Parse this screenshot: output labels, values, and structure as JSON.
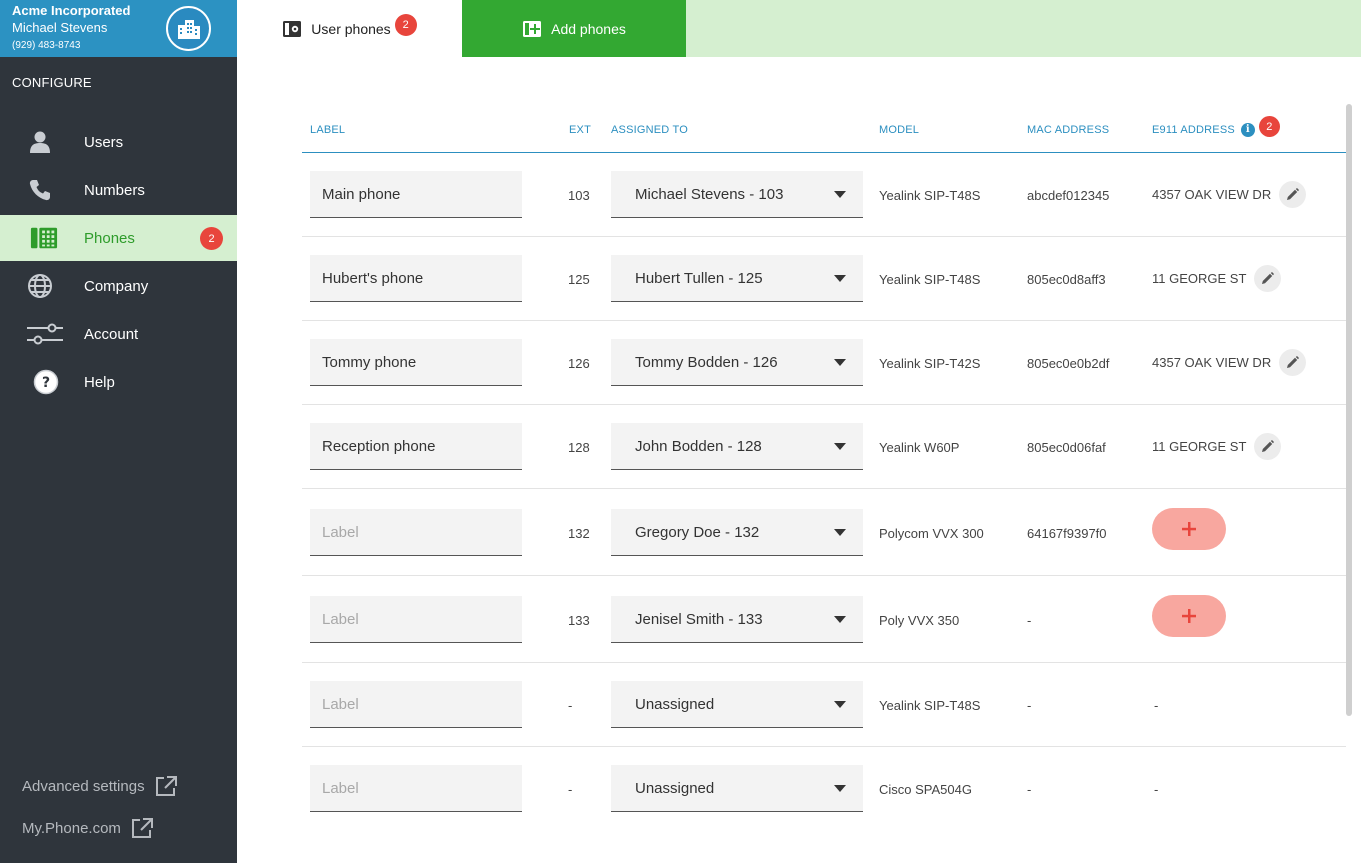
{
  "account": {
    "company": "Acme Incorporated",
    "user": "Michael Stevens",
    "phone": "(929) 483-8743",
    "avatar_icon": "building-icon"
  },
  "sidebar": {
    "section_label": "CONFIGURE",
    "items": [
      {
        "label": "Users",
        "icon": "user-icon"
      },
      {
        "label": "Numbers",
        "icon": "phone-handset-icon"
      },
      {
        "label": "Phones",
        "icon": "desk-phone-icon",
        "badge": "2",
        "active": true
      },
      {
        "label": "Company",
        "icon": "globe-icon"
      },
      {
        "label": "Account",
        "icon": "sliders-icon"
      },
      {
        "label": "Help",
        "icon": "help-icon"
      }
    ],
    "bottom_links": [
      {
        "label": "Advanced settings",
        "icon": "external-link-icon"
      },
      {
        "label": "My.Phone.com",
        "icon": "external-link-icon"
      }
    ]
  },
  "tabs": [
    {
      "label": "User phones",
      "badge": "2",
      "icon": "phone-settings-icon",
      "active": true
    },
    {
      "label": "Add phones",
      "icon": "add-phone-icon"
    }
  ],
  "table": {
    "headers": {
      "label": "LABEL",
      "ext": "EXT",
      "assigned_to": "ASSIGNED TO",
      "model": "MODEL",
      "mac": "MAC ADDRESS",
      "e911": "E911 ADDRESS",
      "e911_badge": "2"
    },
    "label_placeholder": "Label",
    "rows": [
      {
        "label": "Main phone",
        "ext": "103",
        "assigned": "Michael Stevens - 103",
        "model": "Yealink SIP-T48S",
        "mac": "abcdef012345",
        "address": "4357 OAK VIEW DR",
        "address_state": "edit"
      },
      {
        "label": "Hubert's phone",
        "ext": "125",
        "assigned": "Hubert Tullen - 125",
        "model": "Yealink SIP-T48S",
        "mac": "805ec0d8aff3",
        "address": "11 GEORGE ST",
        "address_state": "edit"
      },
      {
        "label": "Tommy phone",
        "ext": "126",
        "assigned": "Tommy Bodden - 126",
        "model": "Yealink SIP-T42S",
        "mac": "805ec0e0b2df",
        "address": "4357 OAK VIEW DR",
        "address_state": "edit"
      },
      {
        "label": "Reception phone",
        "ext": "128",
        "assigned": "John Bodden - 128",
        "model": "Yealink W60P",
        "mac": "805ec0d06faf",
        "address": "11 GEORGE ST",
        "address_state": "edit"
      },
      {
        "label": "",
        "ext": "132",
        "assigned": "Gregory Doe - 132",
        "model": "Polycom VVX 300",
        "mac": "64167f9397f0",
        "address": "",
        "address_state": "add"
      },
      {
        "label": "",
        "ext": "133",
        "assigned": "Jenisel Smith - 133",
        "model": "Poly VVX 350",
        "mac": "-",
        "address": "",
        "address_state": "add"
      },
      {
        "label": "",
        "ext": "-",
        "assigned": "Unassigned",
        "model": "Yealink SIP-T48S",
        "mac": "-",
        "address": "-",
        "address_state": "none"
      },
      {
        "label": "",
        "ext": "-",
        "assigned": "Unassigned",
        "model": "Cisco SPA504G",
        "mac": "-",
        "address": "-",
        "address_state": "none"
      }
    ]
  },
  "colors": {
    "sidebar_bg": "#2f353c",
    "header_blue": "#2c92c2",
    "active_green_bg": "#d5efd0",
    "active_green_text": "#2e9c2b",
    "add_tab_green": "#33a832",
    "badge_red": "#e8453c",
    "add_address_btn": "#f8a79f"
  }
}
